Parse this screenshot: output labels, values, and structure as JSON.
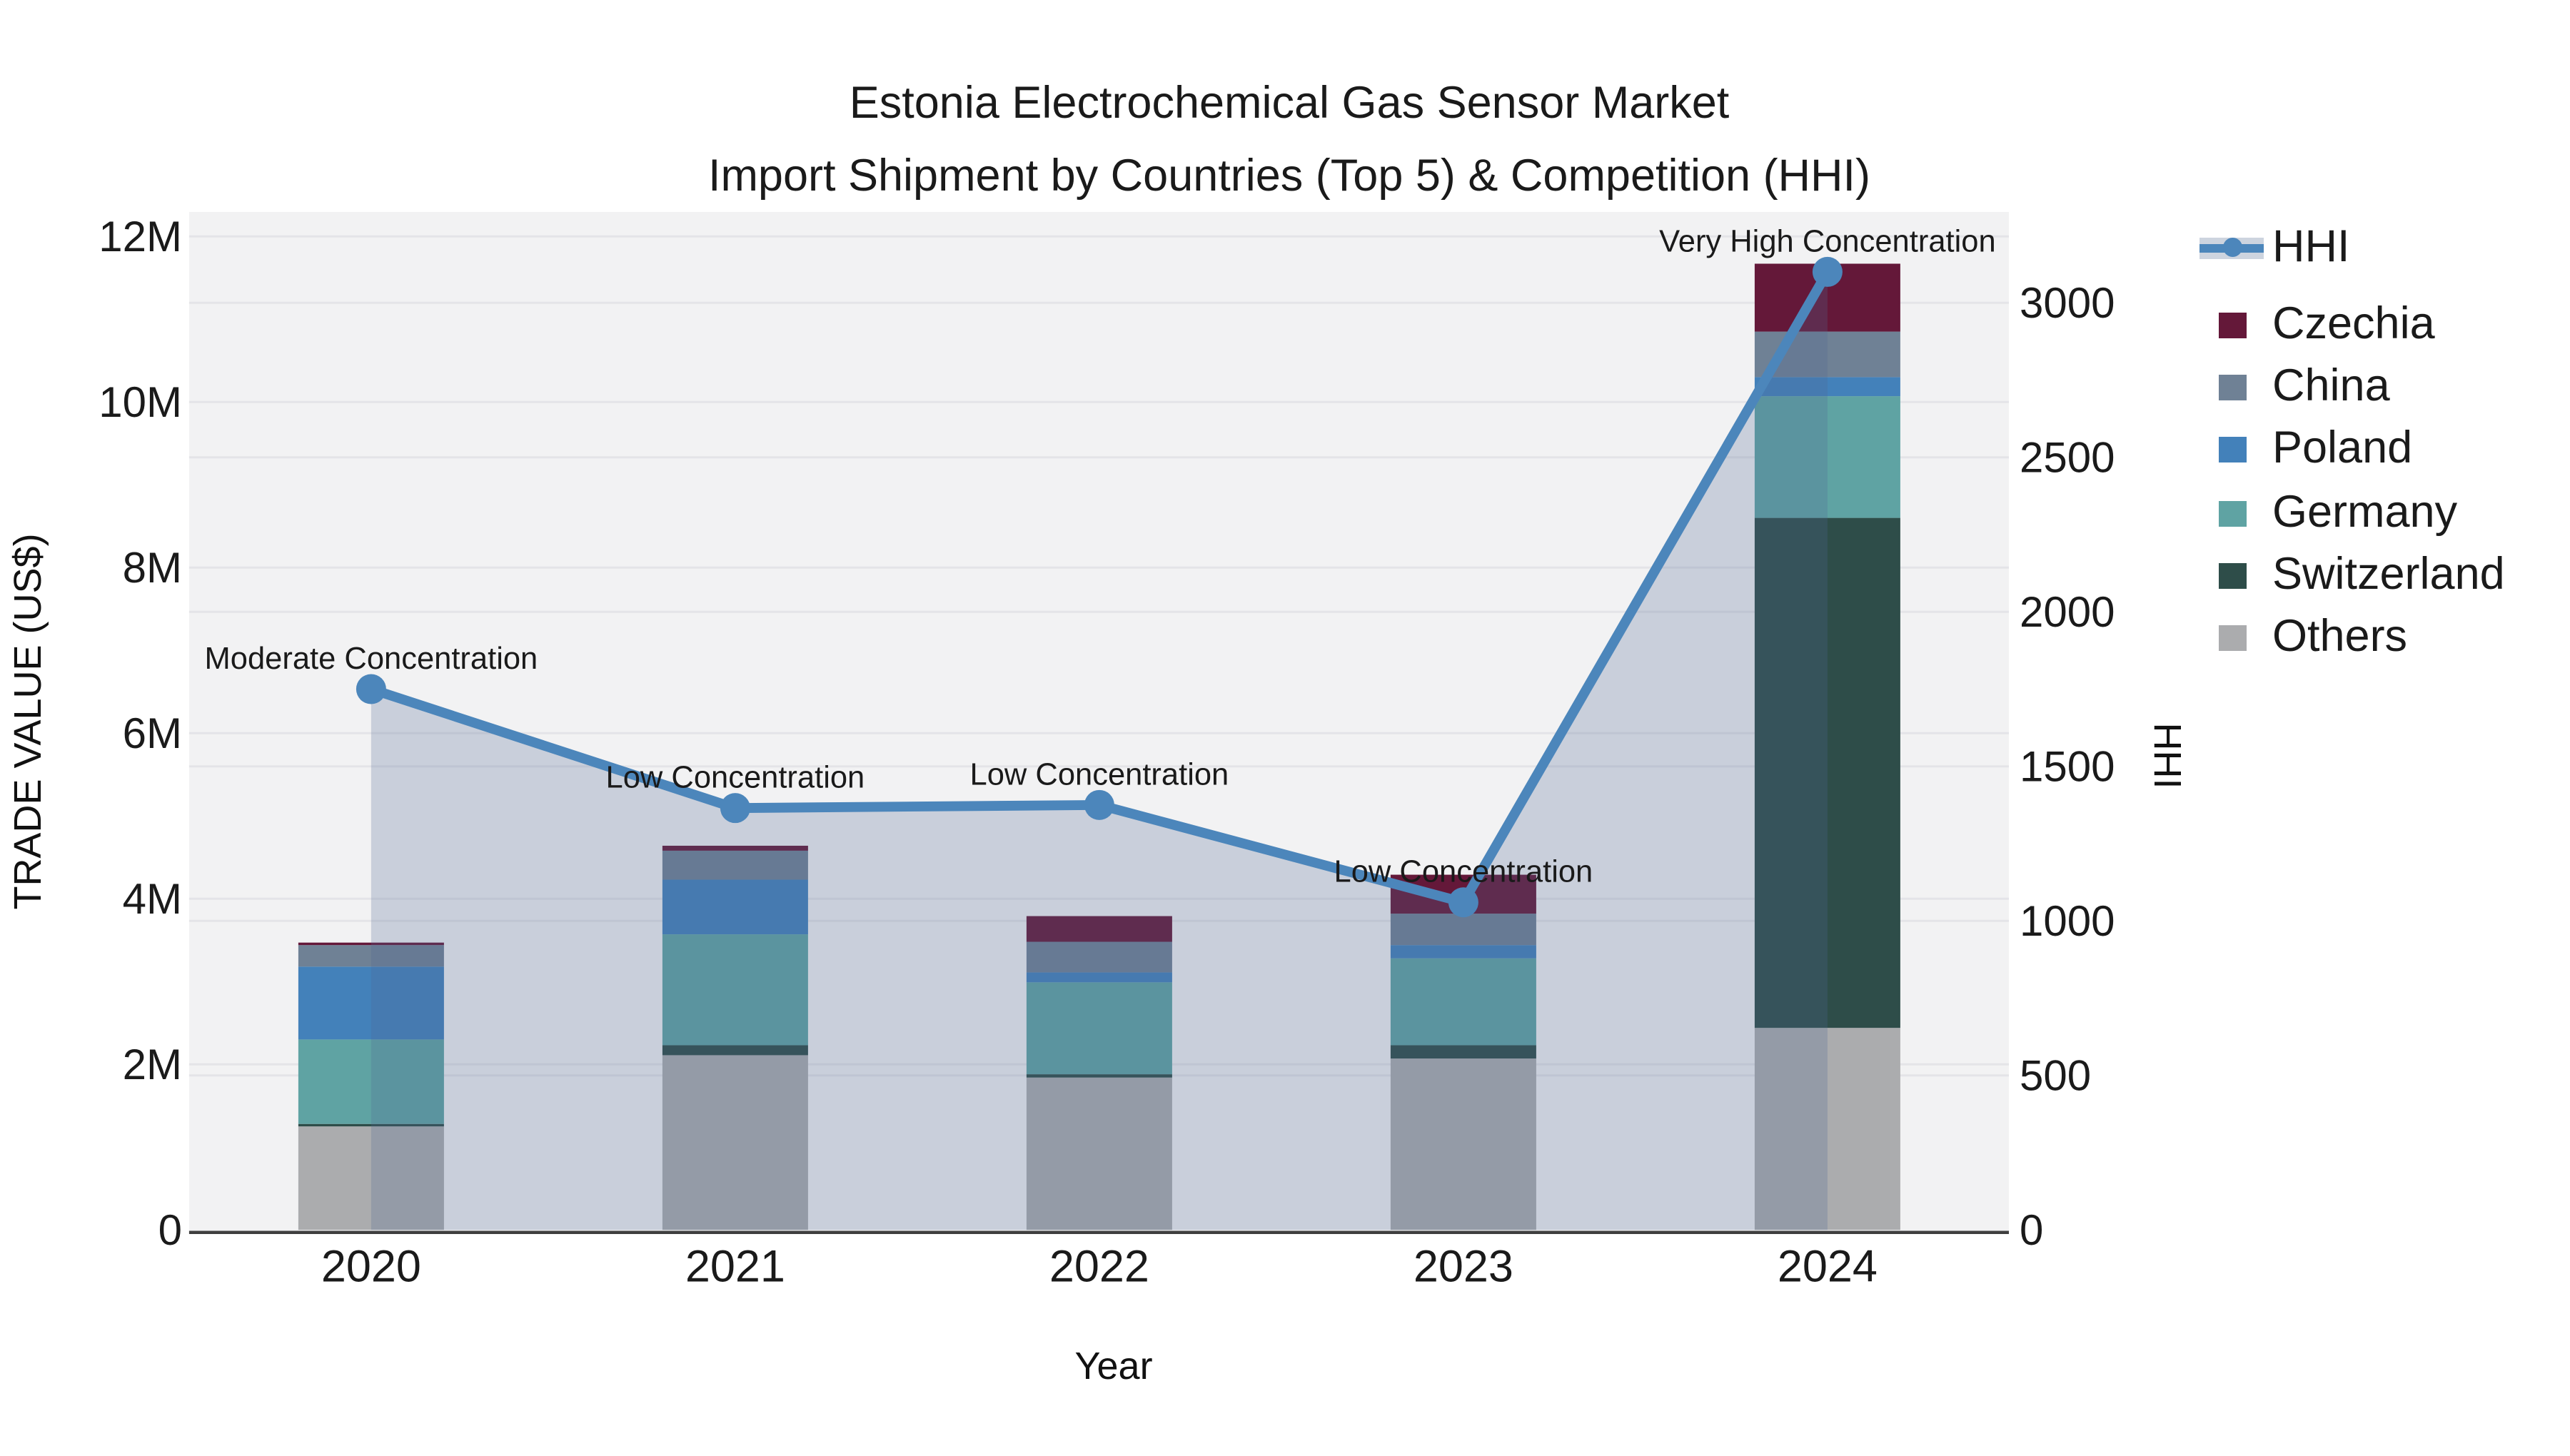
{
  "title": {
    "line1": "Estonia Electrochemical Gas Sensor Market",
    "line2": "Import Shipment by Countries (Top 5) & Competition (HHI)"
  },
  "axes": {
    "x": {
      "title": "Year",
      "categories": [
        "2020",
        "2021",
        "2022",
        "2023",
        "2024"
      ]
    },
    "y_left": {
      "title": "TRADE VALUE (US$)",
      "ticks": [
        "0",
        "2M",
        "4M",
        "6M",
        "8M",
        "10M",
        "12M"
      ],
      "range_millions": [
        0,
        12
      ]
    },
    "y_right": {
      "title": "HHI",
      "ticks": [
        "0",
        "500",
        "1000",
        "1500",
        "2000",
        "2500",
        "3000"
      ],
      "range": [
        0,
        3000
      ]
    }
  },
  "legend": {
    "items": [
      {
        "label": "HHI",
        "kind": "line",
        "color": "#4C86BB"
      },
      {
        "label": "Czechia",
        "kind": "swatch",
        "color": "#641839"
      },
      {
        "label": "China",
        "kind": "swatch",
        "color": "#6F8195"
      },
      {
        "label": "Poland",
        "kind": "swatch",
        "color": "#4381BA"
      },
      {
        "label": "Germany",
        "kind": "swatch",
        "color": "#5FA3A3"
      },
      {
        "label": "Switzerland",
        "kind": "swatch",
        "color": "#2E4D49"
      },
      {
        "label": "Others",
        "kind": "swatch",
        "color": "#ABACAE"
      }
    ]
  },
  "colors": {
    "plot_background": "#F2F2F3",
    "gridline": "#E4E4E8",
    "axis_line": "#3F3F3F",
    "hhi_line": "#4C86BB",
    "hhi_area": "rgba(78,102,146,0.25)"
  },
  "chart_data": {
    "type": "stacked-bar+line",
    "categories": [
      "2020",
      "2021",
      "2022",
      "2023",
      "2024"
    ],
    "bar_value_unit": "million US$ (trade value)",
    "series": [
      {
        "name": "Others",
        "color": "#ABACAE",
        "values": [
          1.25,
          2.11,
          1.84,
          2.07,
          2.44
        ]
      },
      {
        "name": "Switzerland",
        "color": "#2E4D49",
        "values": [
          0.03,
          0.12,
          0.04,
          0.16,
          6.16
        ]
      },
      {
        "name": "Germany",
        "color": "#5FA3A3",
        "values": [
          1.02,
          1.34,
          1.11,
          1.05,
          1.47
        ]
      },
      {
        "name": "Poland",
        "color": "#4381BA",
        "values": [
          0.88,
          0.66,
          0.12,
          0.16,
          0.23
        ]
      },
      {
        "name": "China",
        "color": "#6F8195",
        "values": [
          0.26,
          0.35,
          0.37,
          0.38,
          0.55
        ]
      },
      {
        "name": "Czechia",
        "color": "#641839",
        "values": [
          0.03,
          0.06,
          0.31,
          0.47,
          0.82
        ]
      }
    ],
    "bar_totals_millions": [
      3.47,
      4.64,
      3.79,
      4.29,
      11.67
    ],
    "line": {
      "name": "HHI",
      "color": "#4C86BB",
      "area_color": "rgba(78,102,146,0.25)",
      "values": [
        1750,
        1365,
        1375,
        1060,
        3100
      ]
    },
    "annotations": [
      {
        "x": "2020",
        "text": "Moderate Concentration"
      },
      {
        "x": "2021",
        "text": "Low Concentration"
      },
      {
        "x": "2022",
        "text": "Low Concentration"
      },
      {
        "x": "2023",
        "text": "Low Concentration"
      },
      {
        "x": "2024",
        "text": "Very High Concentration"
      }
    ],
    "ylim_left_millions": [
      0,
      12
    ],
    "ylim_right": [
      0,
      3000
    ],
    "grid": true,
    "legend_position": "right"
  }
}
